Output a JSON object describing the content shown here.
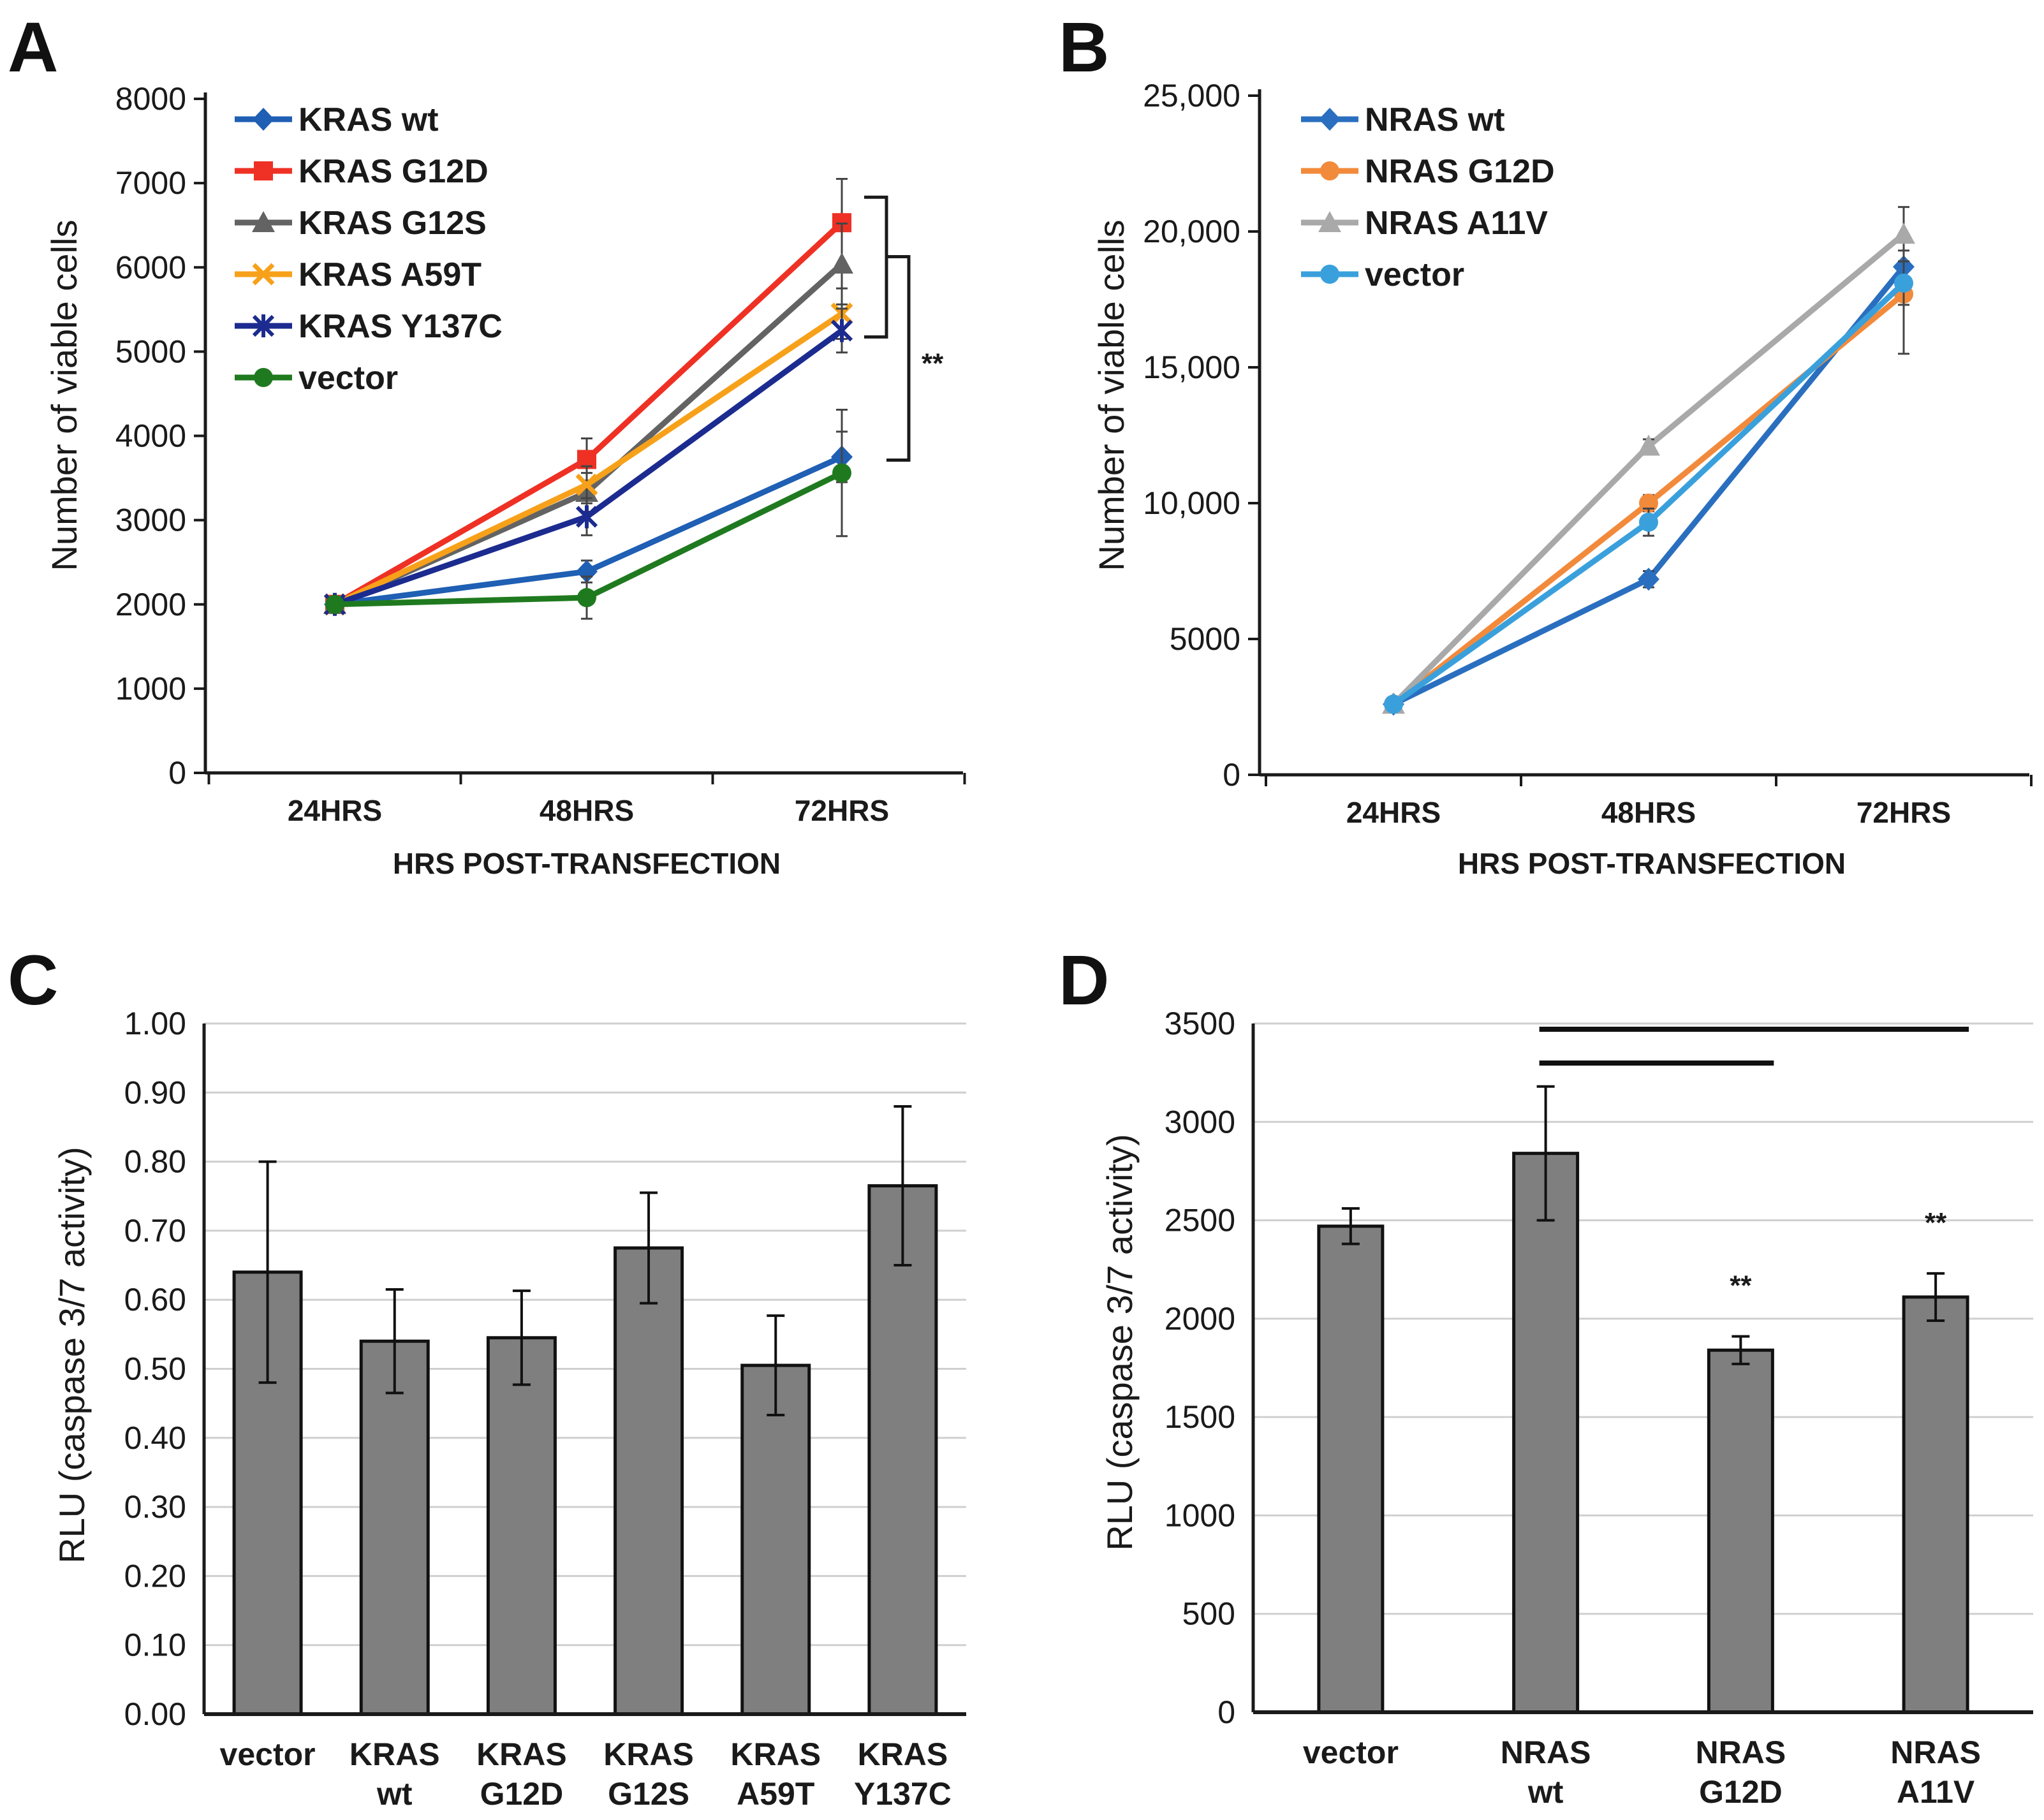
{
  "colors": {
    "kras_wt": "#1f5fb4",
    "kras_g12d": "#ee3124",
    "kras_g12s": "#636363",
    "kras_a59t": "#f7a11a",
    "kras_y137c": "#1c2b8f",
    "kras_vector": "#1f7a1f",
    "nras_wt": "#2a6fbf",
    "nras_g12d": "#f28a3c",
    "nras_a11v": "#a9a9a9",
    "nras_vector": "#3aa0dc",
    "bar_fill": "#7f7f7f",
    "axis": "#1a1a1a",
    "grid": "#cfcfcf"
  },
  "chart_data": [
    {
      "panel": "A",
      "type": "line",
      "categories": [
        "24HRS",
        "48HRS",
        "72HRS"
      ],
      "xlabel": "HRS POST-TRANSFECTION",
      "ylabel": "Number of viable cells",
      "ylim": [
        0,
        8000
      ],
      "yticks": [
        0,
        1000,
        2000,
        3000,
        4000,
        5000,
        6000,
        7000,
        8000
      ],
      "ytick_labels": [
        "0",
        "1000",
        "2000",
        "3000",
        "4000",
        "5000",
        "6000",
        "7000",
        "8000"
      ],
      "legend_position": "top-left",
      "annotation": "**",
      "series": [
        {
          "name": "KRAS wt",
          "color_key": "kras_wt",
          "marker": "diamond",
          "values": [
            2000,
            2390,
            3750
          ],
          "errors": [
            0,
            130,
            300
          ]
        },
        {
          "name": "KRAS G12D",
          "color_key": "kras_g12d",
          "marker": "square",
          "values": [
            2000,
            3720,
            6530
          ],
          "errors": [
            0,
            250,
            520
          ]
        },
        {
          "name": "KRAS G12S",
          "color_key": "kras_g12s",
          "marker": "triangle",
          "values": [
            2000,
            3330,
            6040
          ],
          "errors": [
            0,
            230,
            480
          ]
        },
        {
          "name": "KRAS A59T",
          "color_key": "kras_a59t",
          "marker": "x",
          "values": [
            2000,
            3420,
            5450
          ],
          "errors": [
            0,
            220,
            300
          ]
        },
        {
          "name": "KRAS Y137C",
          "color_key": "kras_y137c",
          "marker": "star",
          "values": [
            2000,
            3040,
            5250
          ],
          "errors": [
            0,
            220,
            260
          ]
        },
        {
          "name": "vector",
          "color_key": "kras_vector",
          "marker": "circle",
          "values": [
            2000,
            2080,
            3560
          ],
          "errors": [
            0,
            250,
            750
          ]
        }
      ]
    },
    {
      "panel": "B",
      "type": "line",
      "categories": [
        "24HRS",
        "48HRS",
        "72HRS"
      ],
      "xlabel": "HRS POST-TRANSFECTION",
      "ylabel": "Number of viable cells",
      "ylim": [
        0,
        25000
      ],
      "yticks": [
        0,
        5000,
        10000,
        15000,
        20000,
        25000
      ],
      "ytick_labels": [
        "0",
        "5000",
        "10,000",
        "15,000",
        "20,000",
        "25,000"
      ],
      "legend_position": "top-left",
      "series": [
        {
          "name": "NRAS wt",
          "color_key": "nras_wt",
          "marker": "diamond",
          "values": [
            2600,
            7200,
            18700
          ],
          "errors": [
            0,
            300,
            600
          ]
        },
        {
          "name": "NRAS G12D",
          "color_key": "nras_g12d",
          "marker": "circle",
          "values": [
            2600,
            10000,
            17700
          ],
          "errors": [
            0,
            300,
            2200
          ]
        },
        {
          "name": "NRAS A11V",
          "color_key": "nras_a11v",
          "marker": "triangle",
          "values": [
            2600,
            12100,
            19900
          ],
          "errors": [
            0,
            250,
            1000
          ]
        },
        {
          "name": "vector",
          "color_key": "nras_vector",
          "marker": "circle",
          "values": [
            2600,
            9300,
            18100
          ],
          "errors": [
            0,
            500,
            800
          ]
        }
      ]
    },
    {
      "panel": "C",
      "type": "bar",
      "categories": [
        [
          "vector"
        ],
        [
          "KRAS",
          "wt"
        ],
        [
          "KRAS",
          "G12D"
        ],
        [
          "KRAS",
          "G12S"
        ],
        [
          "KRAS",
          "A59T"
        ],
        [
          "KRAS",
          "Y137C"
        ]
      ],
      "values": [
        0.64,
        0.54,
        0.545,
        0.675,
        0.505,
        0.765
      ],
      "errors": [
        0.16,
        0.075,
        0.068,
        0.08,
        0.072,
        0.115
      ],
      "xlabel": "",
      "ylabel": "RLU (caspase 3/7 activity)",
      "ylim": [
        0,
        1
      ],
      "yticks": [
        0,
        0.1,
        0.2,
        0.3,
        0.4,
        0.5,
        0.6,
        0.7,
        0.8,
        0.9,
        1.0
      ],
      "ytick_labels": [
        "0.00",
        "0.10",
        "0.20",
        "0.30",
        "0.40",
        "0.50",
        "0.60",
        "0.70",
        "0.80",
        "0.90",
        "1.00"
      ],
      "grid": true
    },
    {
      "panel": "D",
      "type": "bar",
      "categories": [
        [
          "vector"
        ],
        [
          "NRAS",
          "wt"
        ],
        [
          "NRAS",
          "G12D"
        ],
        [
          "NRAS",
          "A11V"
        ]
      ],
      "values": [
        2470,
        2840,
        1840,
        2110
      ],
      "errors": [
        90,
        340,
        70,
        120
      ],
      "annotations": [
        "",
        "",
        "**",
        "**"
      ],
      "brackets": [
        [
          1,
          2
        ],
        [
          1,
          3
        ]
      ],
      "xlabel": "",
      "ylabel": "RLU (caspase 3/7 activity)",
      "ylim": [
        0,
        3500
      ],
      "yticks": [
        0,
        500,
        1000,
        1500,
        2000,
        2500,
        3000,
        3500
      ],
      "ytick_labels": [
        "0",
        "500",
        "1000",
        "1500",
        "2000",
        "2500",
        "3000",
        "3500"
      ],
      "grid": true
    }
  ]
}
